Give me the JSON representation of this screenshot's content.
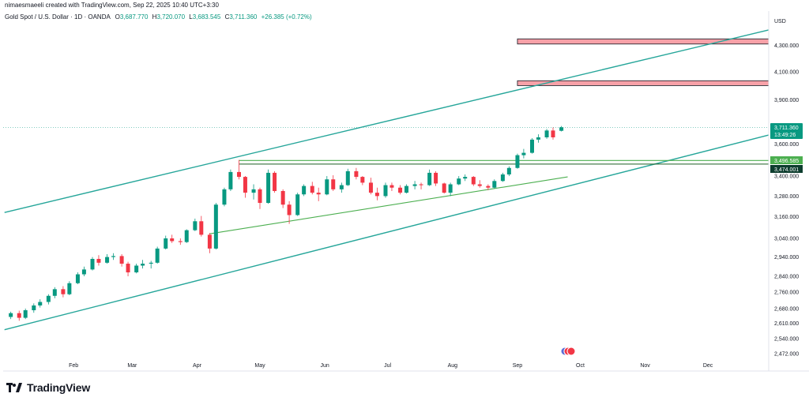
{
  "header": {
    "attribution": "nimaesmaeeli created with TradingView.com, Sep 22, 2025 10:40 UTC+3:30",
    "symbol_line": "Gold Spot / U.S. Dollar · 1D · OANDA",
    "open_label": "O",
    "open": "3,687.770",
    "high_label": "H",
    "high": "3,720.070",
    "low_label": "L",
    "low": "3,683.545",
    "close_label": "C",
    "close": "3,711.360",
    "change": "+26.385 (+0.72%)"
  },
  "axis": {
    "currency": "USD",
    "y_ticks": [
      "4,300.000",
      "4,100.000",
      "3,900.000",
      "3,600.000",
      "3,400.000",
      "3,280.000",
      "3,160.000",
      "3,040.000",
      "2,940.000",
      "2,840.000",
      "2,760.000",
      "2,680.000",
      "2,610.000",
      "2,540.000",
      "2,472.000"
    ],
    "x_ticks": [
      "Feb",
      "Mar",
      "Apr",
      "May",
      "Jun",
      "Jul",
      "Aug",
      "Sep",
      "Oct",
      "Nov",
      "Dec"
    ]
  },
  "price_labels": {
    "current_price": "3,711.360",
    "countdown": "13:49:26",
    "level_1": "3,496.585",
    "level_2": "3,474.001"
  },
  "brand": {
    "name": "TradingView"
  },
  "colors": {
    "up": "#089981",
    "down": "#f23645",
    "channel": "#26a69a",
    "support": "#4caf50",
    "zone": "#f7a1a8",
    "dark_label": "#0d3d2e"
  },
  "chart_data": {
    "type": "candlestick",
    "y_scale": "log",
    "ylim": [
      2440,
      4600
    ],
    "series": [
      {
        "date": "2025-01-02",
        "o": 2640,
        "h": 2665,
        "l": 2630,
        "c": 2658
      },
      {
        "date": "2025-01-06",
        "o": 2658,
        "h": 2670,
        "l": 2622,
        "c": 2636
      },
      {
        "date": "2025-01-09",
        "o": 2636,
        "h": 2680,
        "l": 2630,
        "c": 2672
      },
      {
        "date": "2025-01-13",
        "o": 2672,
        "h": 2705,
        "l": 2660,
        "c": 2695
      },
      {
        "date": "2025-01-16",
        "o": 2695,
        "h": 2725,
        "l": 2685,
        "c": 2712
      },
      {
        "date": "2025-01-20",
        "o": 2712,
        "h": 2750,
        "l": 2700,
        "c": 2742
      },
      {
        "date": "2025-01-23",
        "o": 2742,
        "h": 2785,
        "l": 2730,
        "c": 2775
      },
      {
        "date": "2025-01-27",
        "o": 2775,
        "h": 2790,
        "l": 2735,
        "c": 2750
      },
      {
        "date": "2025-01-30",
        "o": 2750,
        "h": 2815,
        "l": 2745,
        "c": 2805
      },
      {
        "date": "2025-02-03",
        "o": 2805,
        "h": 2860,
        "l": 2800,
        "c": 2850
      },
      {
        "date": "2025-02-06",
        "o": 2850,
        "h": 2890,
        "l": 2840,
        "c": 2875
      },
      {
        "date": "2025-02-10",
        "o": 2875,
        "h": 2940,
        "l": 2870,
        "c": 2930
      },
      {
        "date": "2025-02-13",
        "o": 2930,
        "h": 2950,
        "l": 2895,
        "c": 2910
      },
      {
        "date": "2025-02-17",
        "o": 2910,
        "h": 2955,
        "l": 2905,
        "c": 2940
      },
      {
        "date": "2025-02-20",
        "o": 2940,
        "h": 2960,
        "l": 2925,
        "c": 2945
      },
      {
        "date": "2025-02-24",
        "o": 2945,
        "h": 2955,
        "l": 2890,
        "c": 2905
      },
      {
        "date": "2025-02-27",
        "o": 2905,
        "h": 2915,
        "l": 2840,
        "c": 2860
      },
      {
        "date": "2025-03-03",
        "o": 2860,
        "h": 2905,
        "l": 2855,
        "c": 2895
      },
      {
        "date": "2025-03-06",
        "o": 2895,
        "h": 2925,
        "l": 2880,
        "c": 2905
      },
      {
        "date": "2025-03-10",
        "o": 2905,
        "h": 2920,
        "l": 2880,
        "c": 2910
      },
      {
        "date": "2025-03-13",
        "o": 2910,
        "h": 2995,
        "l": 2905,
        "c": 2985
      },
      {
        "date": "2025-03-17",
        "o": 2985,
        "h": 3055,
        "l": 2980,
        "c": 3040
      },
      {
        "date": "2025-03-20",
        "o": 3040,
        "h": 3060,
        "l": 3015,
        "c": 3025
      },
      {
        "date": "2025-03-24",
        "o": 3025,
        "h": 3040,
        "l": 3005,
        "c": 3020
      },
      {
        "date": "2025-03-27",
        "o": 3020,
        "h": 3090,
        "l": 3015,
        "c": 3085
      },
      {
        "date": "2025-03-31",
        "o": 3085,
        "h": 3150,
        "l": 3080,
        "c": 3135
      },
      {
        "date": "2025-04-03",
        "o": 3135,
        "h": 3165,
        "l": 3050,
        "c": 3060
      },
      {
        "date": "2025-04-07",
        "o": 3060,
        "h": 3070,
        "l": 2960,
        "c": 2985
      },
      {
        "date": "2025-04-10",
        "o": 2985,
        "h": 3240,
        "l": 2980,
        "c": 3230
      },
      {
        "date": "2025-04-14",
        "o": 3230,
        "h": 3330,
        "l": 3220,
        "c": 3320
      },
      {
        "date": "2025-04-17",
        "o": 3320,
        "h": 3440,
        "l": 3310,
        "c": 3425
      },
      {
        "date": "2025-04-21",
        "o": 3425,
        "h": 3500,
        "l": 3380,
        "c": 3395
      },
      {
        "date": "2025-04-24",
        "o": 3395,
        "h": 3400,
        "l": 3270,
        "c": 3300
      },
      {
        "date": "2025-04-28",
        "o": 3300,
        "h": 3350,
        "l": 3260,
        "c": 3320
      },
      {
        "date": "2025-05-01",
        "o": 3320,
        "h": 3330,
        "l": 3205,
        "c": 3240
      },
      {
        "date": "2025-05-05",
        "o": 3240,
        "h": 3440,
        "l": 3235,
        "c": 3420
      },
      {
        "date": "2025-05-08",
        "o": 3420,
        "h": 3430,
        "l": 3300,
        "c": 3310
      },
      {
        "date": "2025-05-12",
        "o": 3310,
        "h": 3320,
        "l": 3210,
        "c": 3230
      },
      {
        "date": "2025-05-15",
        "o": 3230,
        "h": 3250,
        "l": 3120,
        "c": 3170
      },
      {
        "date": "2025-05-19",
        "o": 3170,
        "h": 3300,
        "l": 3165,
        "c": 3290
      },
      {
        "date": "2025-05-22",
        "o": 3290,
        "h": 3350,
        "l": 3280,
        "c": 3340
      },
      {
        "date": "2025-05-26",
        "o": 3340,
        "h": 3365,
        "l": 3290,
        "c": 3300
      },
      {
        "date": "2025-05-29",
        "o": 3300,
        "h": 3330,
        "l": 3250,
        "c": 3290
      },
      {
        "date": "2025-06-02",
        "o": 3290,
        "h": 3400,
        "l": 3285,
        "c": 3380
      },
      {
        "date": "2025-06-05",
        "o": 3380,
        "h": 3405,
        "l": 3310,
        "c": 3320
      },
      {
        "date": "2025-06-09",
        "o": 3320,
        "h": 3360,
        "l": 3300,
        "c": 3345
      },
      {
        "date": "2025-06-12",
        "o": 3345,
        "h": 3445,
        "l": 3340,
        "c": 3430
      },
      {
        "date": "2025-06-16",
        "o": 3430,
        "h": 3450,
        "l": 3380,
        "c": 3395
      },
      {
        "date": "2025-06-19",
        "o": 3395,
        "h": 3400,
        "l": 3345,
        "c": 3360
      },
      {
        "date": "2025-06-23",
        "o": 3360,
        "h": 3390,
        "l": 3290,
        "c": 3300
      },
      {
        "date": "2025-06-26",
        "o": 3300,
        "h": 3330,
        "l": 3255,
        "c": 3280
      },
      {
        "date": "2025-06-30",
        "o": 3280,
        "h": 3360,
        "l": 3270,
        "c": 3345
      },
      {
        "date": "2025-07-03",
        "o": 3345,
        "h": 3360,
        "l": 3310,
        "c": 3330
      },
      {
        "date": "2025-07-07",
        "o": 3330,
        "h": 3345,
        "l": 3290,
        "c": 3300
      },
      {
        "date": "2025-07-10",
        "o": 3300,
        "h": 3350,
        "l": 3295,
        "c": 3340
      },
      {
        "date": "2025-07-14",
        "o": 3340,
        "h": 3370,
        "l": 3320,
        "c": 3350
      },
      {
        "date": "2025-07-17",
        "o": 3350,
        "h": 3360,
        "l": 3320,
        "c": 3345
      },
      {
        "date": "2025-07-21",
        "o": 3345,
        "h": 3440,
        "l": 3340,
        "c": 3420
      },
      {
        "date": "2025-07-24",
        "o": 3420,
        "h": 3430,
        "l": 3340,
        "c": 3355
      },
      {
        "date": "2025-07-28",
        "o": 3355,
        "h": 3360,
        "l": 3295,
        "c": 3300
      },
      {
        "date": "2025-07-31",
        "o": 3300,
        "h": 3360,
        "l": 3280,
        "c": 3350
      },
      {
        "date": "2025-08-04",
        "o": 3350,
        "h": 3400,
        "l": 3345,
        "c": 3385
      },
      {
        "date": "2025-08-07",
        "o": 3385,
        "h": 3410,
        "l": 3370,
        "c": 3395
      },
      {
        "date": "2025-08-11",
        "o": 3395,
        "h": 3400,
        "l": 3340,
        "c": 3350
      },
      {
        "date": "2025-08-14",
        "o": 3350,
        "h": 3375,
        "l": 3330,
        "c": 3340
      },
      {
        "date": "2025-08-18",
        "o": 3340,
        "h": 3350,
        "l": 3315,
        "c": 3330
      },
      {
        "date": "2025-08-21",
        "o": 3330,
        "h": 3380,
        "l": 3325,
        "c": 3370
      },
      {
        "date": "2025-08-25",
        "o": 3370,
        "h": 3420,
        "l": 3365,
        "c": 3410
      },
      {
        "date": "2025-08-28",
        "o": 3410,
        "h": 3460,
        "l": 3400,
        "c": 3450
      },
      {
        "date": "2025-09-01",
        "o": 3450,
        "h": 3540,
        "l": 3445,
        "c": 3530
      },
      {
        "date": "2025-09-04",
        "o": 3530,
        "h": 3570,
        "l": 3510,
        "c": 3545
      },
      {
        "date": "2025-09-08",
        "o": 3545,
        "h": 3640,
        "l": 3540,
        "c": 3630
      },
      {
        "date": "2025-09-11",
        "o": 3630,
        "h": 3665,
        "l": 3610,
        "c": 3645
      },
      {
        "date": "2025-09-15",
        "o": 3645,
        "h": 3700,
        "l": 3635,
        "c": 3690
      },
      {
        "date": "2025-09-18",
        "o": 3690,
        "h": 3710,
        "l": 3630,
        "c": 3645
      },
      {
        "date": "2025-09-22",
        "o": 3688,
        "h": 3720,
        "l": 3684,
        "c": 3711
      }
    ],
    "drawings": {
      "channel_upper": [
        [
          "2024-12-30",
          3185
        ],
        [
          "2025-12-30",
          4420
        ]
      ],
      "channel_lower": [
        [
          "2024-12-30",
          2580
        ],
        [
          "2025-12-30",
          3660
        ]
      ],
      "support_trendline": [
        [
          "2025-04-07",
          3065
        ],
        [
          "2025-09-25",
          3395
        ]
      ],
      "horizontal_levels": [
        3496.585,
        3474.001
      ],
      "resistance_zones": [
        [
          4310,
          4350
        ],
        [
          4000,
          4035
        ]
      ],
      "current_price_line": 3711.36
    }
  }
}
